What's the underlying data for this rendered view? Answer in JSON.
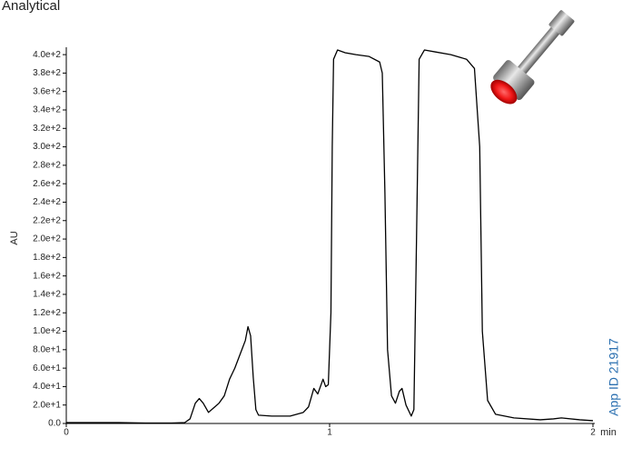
{
  "chart_data": {
    "type": "line",
    "title": "Analytical",
    "y_label": "AU",
    "x_unit": "min",
    "annotation": "App ID 21917",
    "annotation_color": "#2a6fb0",
    "x": [
      0,
      0.1,
      0.2,
      0.3,
      0.4,
      0.45,
      0.47,
      0.49,
      0.505,
      0.52,
      0.54,
      0.56,
      0.58,
      0.6,
      0.62,
      0.64,
      0.66,
      0.68,
      0.69,
      0.7,
      0.71,
      0.72,
      0.73,
      0.78,
      0.85,
      0.9,
      0.92,
      0.94,
      0.955,
      0.975,
      0.985,
      0.995,
      1.005,
      1.01,
      1.015,
      1.03,
      1.06,
      1.1,
      1.15,
      1.19,
      1.2,
      1.21,
      1.22,
      1.235,
      1.25,
      1.265,
      1.275,
      1.29,
      1.31,
      1.32,
      1.33,
      1.34,
      1.36,
      1.4,
      1.46,
      1.52,
      1.55,
      1.57,
      1.58,
      1.6,
      1.63,
      1.7,
      1.8,
      1.85,
      1.88,
      1.95,
      2.0
    ],
    "series": [
      {
        "name": "AU",
        "color": "#000000",
        "values": [
          1,
          1,
          1,
          0.5,
          0.5,
          1,
          5,
          22,
          27,
          22,
          12,
          17,
          22,
          30,
          48,
          60,
          75,
          90,
          105,
          95,
          50,
          15,
          9,
          8,
          8,
          12,
          18,
          38,
          32,
          48,
          40,
          42,
          120,
          300,
          395,
          405,
          402,
          400,
          398,
          392,
          380,
          250,
          80,
          30,
          22,
          35,
          38,
          20,
          8,
          15,
          200,
          395,
          405,
          403,
          400,
          395,
          385,
          300,
          100,
          25,
          10,
          6,
          4,
          5,
          6,
          4,
          3
        ]
      }
    ],
    "xlim": [
      0,
      2
    ],
    "xticks": [
      0,
      1,
      2
    ],
    "ylim": [
      0,
      408
    ],
    "yticks": [
      {
        "value": 0,
        "label": "0.0"
      },
      {
        "value": 20,
        "label": "2.0e+1"
      },
      {
        "value": 40,
        "label": "4.0e+1"
      },
      {
        "value": 60,
        "label": "6.0e+1"
      },
      {
        "value": 80,
        "label": "8.0e+1"
      },
      {
        "value": 100,
        "label": "1.0e+2"
      },
      {
        "value": 120,
        "label": "1.2e+2"
      },
      {
        "value": 140,
        "label": "1.4e+2"
      },
      {
        "value": 160,
        "label": "1.6e+2"
      },
      {
        "value": 180,
        "label": "1.8e+2"
      },
      {
        "value": 200,
        "label": "2.0e+2"
      },
      {
        "value": 220,
        "label": "2.2e+2"
      },
      {
        "value": 240,
        "label": "2.4e+2"
      },
      {
        "value": 260,
        "label": "2.6e+2"
      },
      {
        "value": 280,
        "label": "2.8e+2"
      },
      {
        "value": 300,
        "label": "3.0e+2"
      },
      {
        "value": 320,
        "label": "3.2e+2"
      },
      {
        "value": 340,
        "label": "3.4e+2"
      },
      {
        "value": 360,
        "label": "3.6e+2"
      },
      {
        "value": 380,
        "label": "3.8e+2"
      },
      {
        "value": 400,
        "label": "4.0e+2"
      }
    ],
    "grid": false
  }
}
